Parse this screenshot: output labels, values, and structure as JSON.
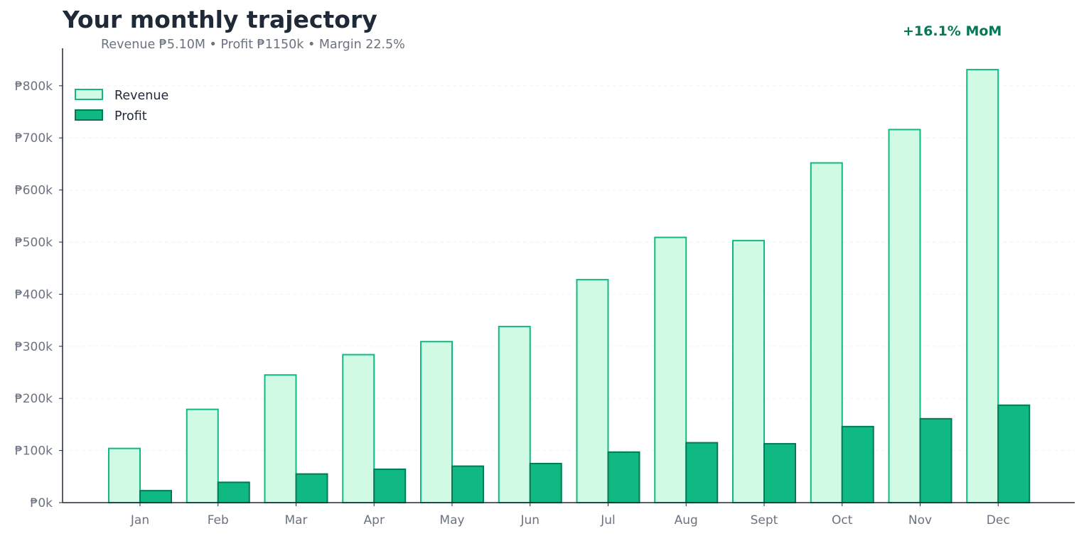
{
  "chart_data": {
    "type": "bar",
    "title": "Your monthly trajectory",
    "subtitle": "Revenue ₱5.10M  •  Profit ₱1150k  •  Margin 22.5%",
    "annotation": "+16.1% MoM",
    "categories": [
      "Jan",
      "Feb",
      "Mar",
      "Apr",
      "May",
      "Jun",
      "Jul",
      "Aug",
      "Sept",
      "Oct",
      "Nov",
      "Dec"
    ],
    "series": [
      {
        "name": "Revenue",
        "values": [
          104,
          179,
          245,
          284,
          309,
          338,
          428,
          509,
          503,
          652,
          716,
          831
        ],
        "fill": "#d1fae5",
        "stroke": "#10b981"
      },
      {
        "name": "Profit",
        "values": [
          23,
          39,
          55,
          64,
          70,
          75,
          97,
          115,
          113,
          146,
          161,
          187
        ],
        "fill": "#10b981",
        "stroke": "#047857"
      }
    ],
    "y_ticks": [
      0,
      100,
      200,
      300,
      400,
      500,
      600,
      700,
      800
    ],
    "y_tick_labels": [
      "₱0k",
      "₱100k",
      "₱200k",
      "₱300k",
      "₱400k",
      "₱500k",
      "₱600k",
      "₱700k",
      "₱800k"
    ],
    "ylim": [
      0,
      872
    ],
    "units": "thousands PHP",
    "grid": "horizontal dashed",
    "legend_position": "top-left",
    "xlabel": "",
    "ylabel": ""
  },
  "colors": {
    "title": "#1f2937",
    "subtitle": "#6b7280",
    "annotation": "#047857",
    "axis": "#1f2937",
    "grid": "#f1f2f4"
  }
}
